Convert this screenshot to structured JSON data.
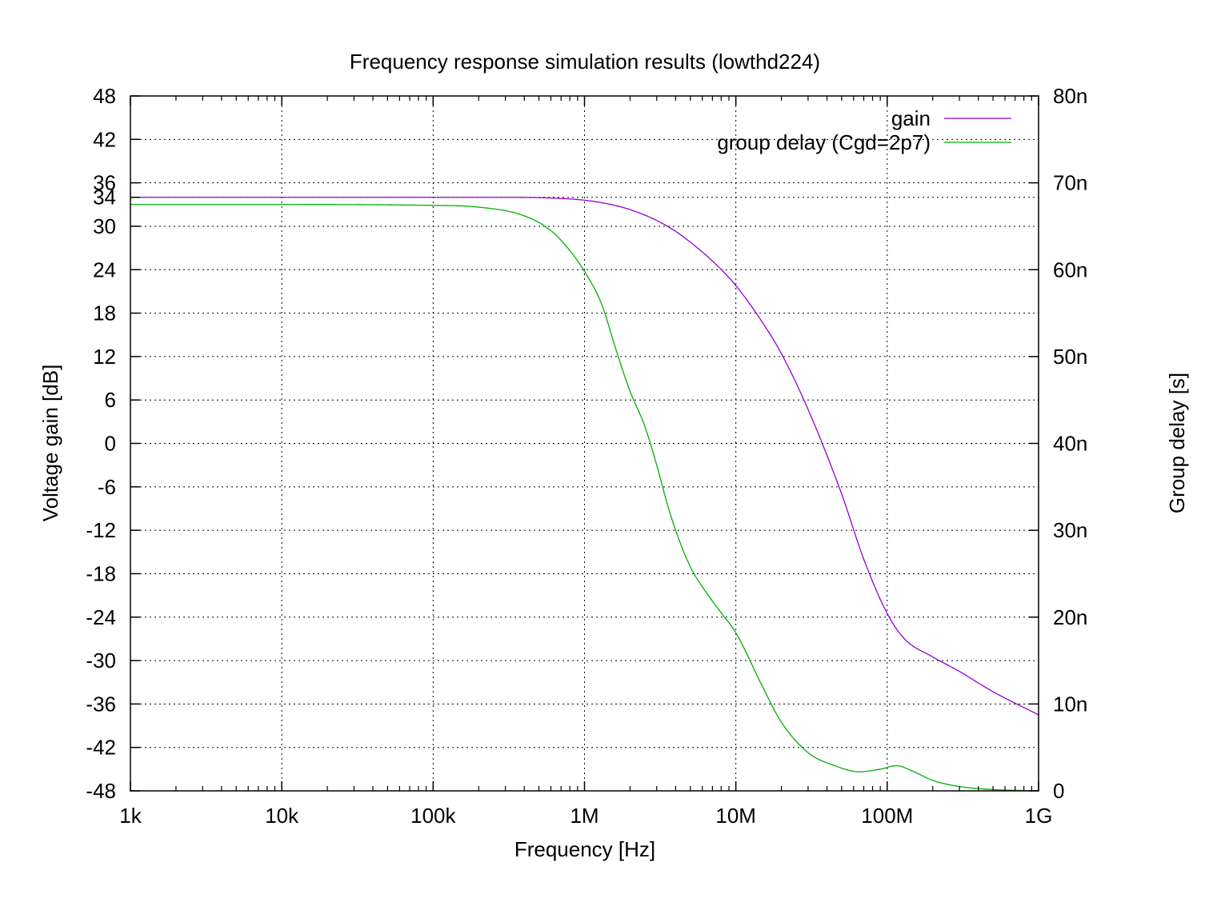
{
  "chart_data": {
    "type": "line",
    "title": "Frequency response simulation results (lowthd224)",
    "xlabel": "Frequency [Hz]",
    "ylabel": "Voltage gain [dB]",
    "y2label": "Group delay [s]",
    "xscale": "log",
    "xlim": [
      1000,
      1000000000
    ],
    "ylim": [
      -48,
      48
    ],
    "y2lim": [
      0,
      8e-08
    ],
    "grid": true,
    "legend_position": "top-right",
    "x_ticks": [
      {
        "value": 1000,
        "label": "1k"
      },
      {
        "value": 10000,
        "label": "10k"
      },
      {
        "value": 100000,
        "label": "100k"
      },
      {
        "value": 1000000,
        "label": "1M"
      },
      {
        "value": 10000000,
        "label": "10M"
      },
      {
        "value": 100000000,
        "label": "100M"
      },
      {
        "value": 1000000000,
        "label": "1G"
      }
    ],
    "y_ticks": [
      {
        "value": 48,
        "label": "48"
      },
      {
        "value": 42,
        "label": "42"
      },
      {
        "value": 36,
        "label": "36"
      },
      {
        "value": 34,
        "label": "34"
      },
      {
        "value": 30,
        "label": "30"
      },
      {
        "value": 24,
        "label": "24"
      },
      {
        "value": 18,
        "label": "18"
      },
      {
        "value": 12,
        "label": "12"
      },
      {
        "value": 6,
        "label": "6"
      },
      {
        "value": 0,
        "label": "0"
      },
      {
        "value": -6,
        "label": "-6"
      },
      {
        "value": -12,
        "label": "-12"
      },
      {
        "value": -18,
        "label": "-18"
      },
      {
        "value": -24,
        "label": "-24"
      },
      {
        "value": -30,
        "label": "-30"
      },
      {
        "value": -36,
        "label": "-36"
      },
      {
        "value": -42,
        "label": "-42"
      },
      {
        "value": -48,
        "label": "-48"
      }
    ],
    "y2_ticks": [
      {
        "value": 8e-08,
        "label": "80n"
      },
      {
        "value": 7e-08,
        "label": "70n"
      },
      {
        "value": 6e-08,
        "label": "60n"
      },
      {
        "value": 5e-08,
        "label": "50n"
      },
      {
        "value": 4e-08,
        "label": "40n"
      },
      {
        "value": 3e-08,
        "label": "30n"
      },
      {
        "value": 2e-08,
        "label": "20n"
      },
      {
        "value": 1e-08,
        "label": "10n"
      },
      {
        "value": 0,
        "label": "0"
      }
    ],
    "series": [
      {
        "name": "gain",
        "axis": "y",
        "color": "#9400d3",
        "x": [
          1000,
          10000,
          100000,
          300000,
          600000,
          1000000,
          1500000,
          2000000,
          3000000,
          4000000,
          5000000,
          7000000,
          10000000,
          15000000,
          20000000,
          30000000,
          50000000,
          70000000,
          100000000,
          130000000,
          200000000,
          300000000,
          500000000,
          1000000000
        ],
        "values": [
          34,
          34,
          34,
          34,
          33.9,
          33.6,
          33.0,
          32.3,
          30.8,
          29.3,
          27.8,
          25.2,
          21.8,
          16.7,
          12.4,
          4.7,
          -7.0,
          -16.0,
          -23.5,
          -27.0,
          -29.5,
          -31.5,
          -34.3,
          -37.5
        ]
      },
      {
        "name": "group delay (Cgd=2p7)",
        "axis": "y2",
        "color": "#00b000",
        "x": [
          1000,
          10000,
          100000,
          200000,
          400000,
          600000,
          800000,
          1000000,
          1300000,
          1600000,
          2000000,
          2500000,
          3000000,
          3500000,
          4000000,
          5000000,
          6000000,
          8000000,
          10000000,
          15000000,
          20000000,
          30000000,
          45000000,
          65000000,
          90000000,
          115000000,
          150000000,
          200000000,
          300000000,
          500000000,
          800000000,
          1000000000
        ],
        "values": [
          6.75e-08,
          6.75e-08,
          6.74e-08,
          6.72e-08,
          6.62e-08,
          6.45e-08,
          6.22e-08,
          5.98e-08,
          5.6e-08,
          5.1e-08,
          4.6e-08,
          4.2e-08,
          3.75e-08,
          3.32e-08,
          3e-08,
          2.58e-08,
          2.35e-08,
          2.05e-08,
          1.82e-08,
          1.2e-08,
          7.9e-09,
          4.4e-09,
          2.9e-09,
          2.2e-09,
          2.5e-09,
          2.9e-09,
          2.2e-09,
          1.2e-09,
          5e-10,
          1.5e-10,
          4e-11,
          0
        ]
      }
    ]
  }
}
